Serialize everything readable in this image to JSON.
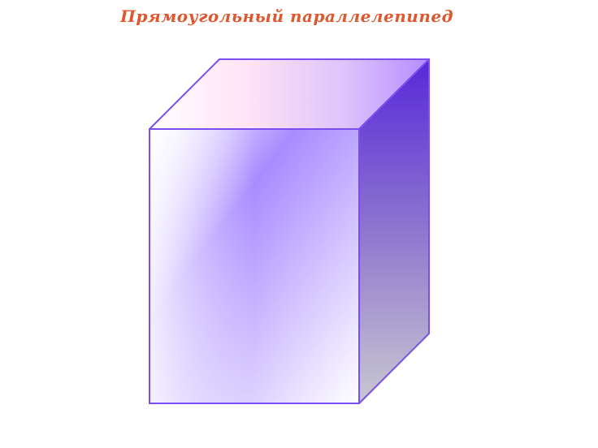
{
  "slide": {
    "title": "Прямоугольный параллелепипед"
  },
  "figure": {
    "shape": "rectangular-parallelepiped",
    "colors": {
      "edge": "#7a4ef0",
      "front_light": "#ffffff",
      "front_mid": "#a98bff",
      "top_light": "#ffffff",
      "top_mid": "#ffe3f7",
      "top_dark": "#b78cff",
      "side_dark": "#5628d8",
      "side_light": "#c8c8d0",
      "title": "#e0572d"
    }
  }
}
